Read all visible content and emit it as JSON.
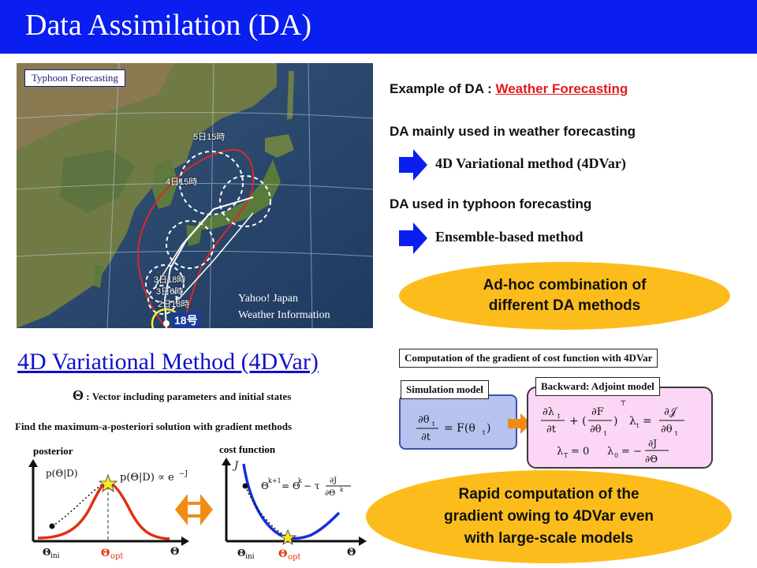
{
  "header": {
    "title": "Data Assimilation (DA)"
  },
  "map": {
    "label": "Typhoon Forecasting",
    "credit_line1": "Yahoo! Japan",
    "credit_line2": "Weather Information",
    "typhoon_number": "18号",
    "forecast_points": [
      "5日15時",
      "4日15時",
      "3日18時",
      "3日6時",
      "2日18時"
    ]
  },
  "right_panel": {
    "example_prefix": "Example of DA : ",
    "example_highlight": "Weather Forecasting",
    "weather_heading": "DA mainly used in weather forecasting",
    "weather_method": "4D Variational method (4DVar)",
    "typhoon_heading": "DA used in typhoon forecasting",
    "typhoon_method": "Ensemble-based method",
    "callout_line1": "Ad-hoc combination of",
    "callout_line2": "different DA methods"
  },
  "vardas": {
    "title": "4D Variational Method (4DVar)",
    "theta_symbol": "Θ",
    "theta_desc": ": Vector including parameters and initial states",
    "map_solution": "Find the maximum-a-posteriori solution with gradient methods",
    "posterior_label": "posterior",
    "cost_label": "cost function"
  },
  "gradient": {
    "title": "Computation of the gradient of cost function with 4DVar",
    "simulation_label": "Simulation model",
    "backward_label": "Backward: Adjoint model",
    "callout_line1": "Rapid computation of the",
    "callout_line2": "gradient owing to 4DVar even",
    "callout_line3": "with large-scale models"
  },
  "colors": {
    "title_bar": "#0a1ef0",
    "highlight_red": "#e31919",
    "arrow_blue": "#0a1ef0",
    "callout_yellow": "#fcbd1c",
    "sim_box": "#b6c3ef",
    "adjoint_box": "#fbd6f5",
    "curve_red": "#e03010",
    "curve_blue": "#1530d8",
    "double_arrow": "#f08c14"
  }
}
